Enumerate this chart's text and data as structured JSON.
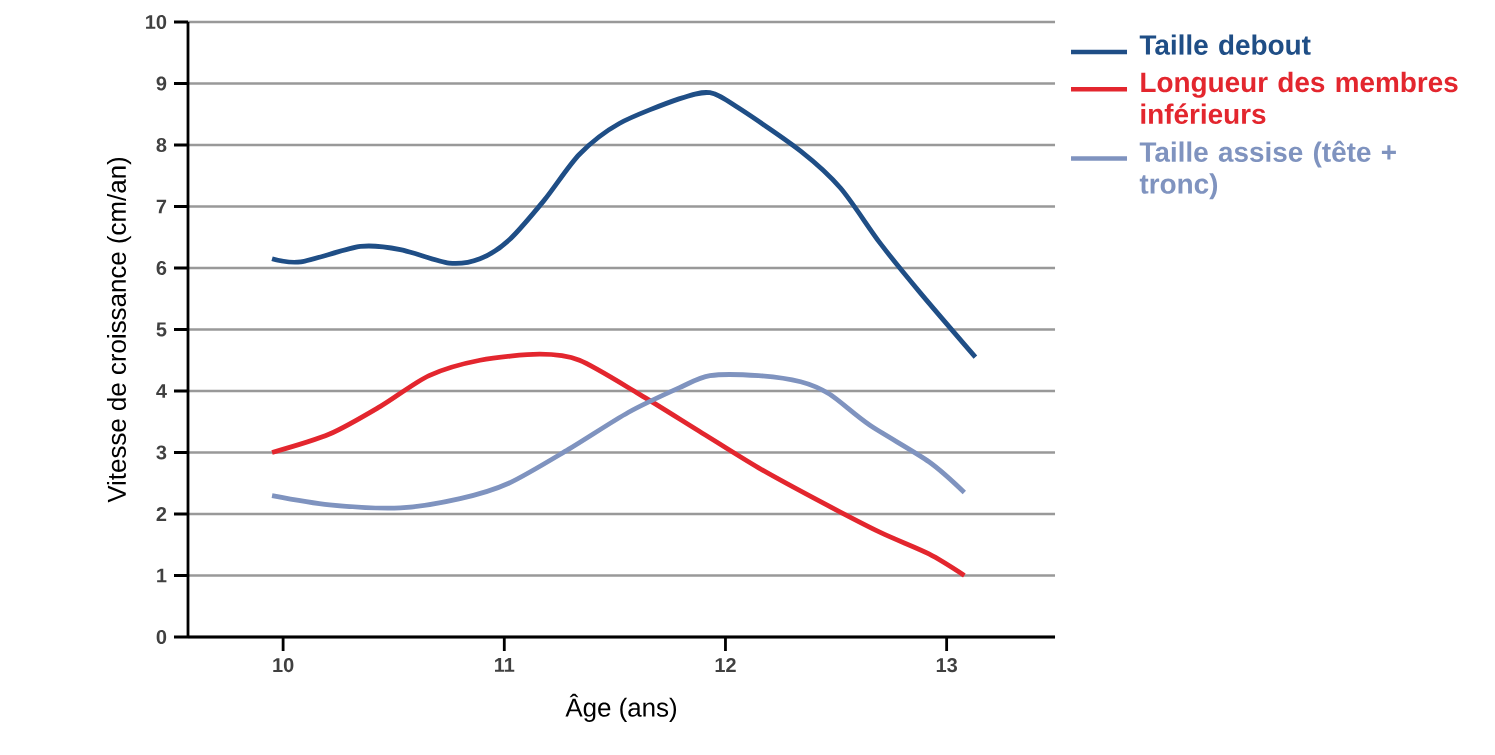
{
  "chart_data": {
    "type": "line",
    "xlabel": "Âge (ans)",
    "ylabel": "Vitesse de croissance (cm/an)",
    "xlim": [
      9.57,
      13.49
    ],
    "ylim": [
      0,
      10
    ],
    "xticks": [
      10,
      11,
      12,
      13
    ],
    "yticks": [
      0,
      1,
      2,
      3,
      4,
      5,
      6,
      7,
      8,
      9,
      10
    ],
    "grid": "y",
    "legend": "top right",
    "series": [
      {
        "name": "Taille debout",
        "color": "#1f4e86",
        "x": [
          9.95,
          10.08,
          10.35,
          10.53,
          10.75,
          10.89,
          11.02,
          11.18,
          11.34,
          11.52,
          11.79,
          11.93,
          12.06,
          12.34,
          12.52,
          12.7,
          12.88,
          13.13
        ],
        "values": [
          6.15,
          6.1,
          6.35,
          6.3,
          6.08,
          6.15,
          6.45,
          7.1,
          7.85,
          8.35,
          8.75,
          8.85,
          8.6,
          7.9,
          7.3,
          6.4,
          5.6,
          4.55
        ]
      },
      {
        "name": "Longueur des membres inférieurs",
        "color": "#e3262e",
        "x": [
          9.95,
          10.21,
          10.44,
          10.66,
          10.89,
          11.16,
          11.34,
          11.61,
          11.88,
          12.15,
          12.43,
          12.7,
          12.92,
          13.08
        ],
        "values": [
          3.0,
          3.3,
          3.75,
          4.25,
          4.5,
          4.6,
          4.5,
          3.95,
          3.35,
          2.75,
          2.2,
          1.7,
          1.35,
          1.0
        ]
      },
      {
        "name": "Taille assise (tête + tronc)",
        "color": "#7f93bf",
        "x": [
          9.95,
          10.21,
          10.53,
          10.8,
          11.02,
          11.29,
          11.56,
          11.79,
          11.93,
          12.15,
          12.34,
          12.47,
          12.65,
          12.92,
          13.08
        ],
        "values": [
          2.3,
          2.15,
          2.1,
          2.25,
          2.5,
          3.05,
          3.65,
          4.05,
          4.25,
          4.25,
          4.15,
          3.95,
          3.45,
          2.85,
          2.35
        ]
      }
    ]
  }
}
